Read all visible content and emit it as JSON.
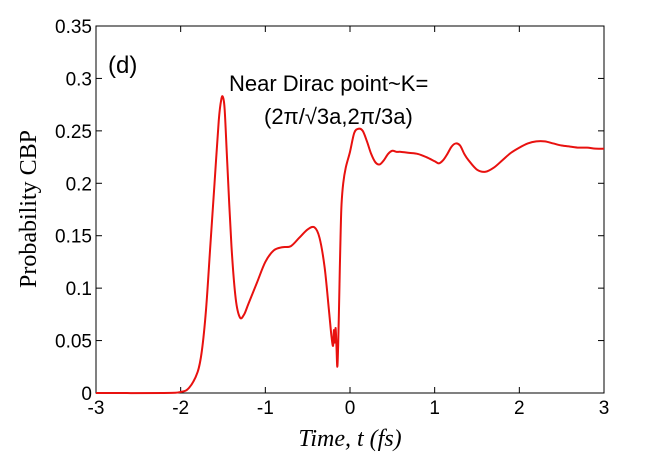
{
  "chart_data": {
    "type": "line",
    "title": "",
    "panel_label": "(d)",
    "annotation_line1": "Near Dirac point~K=",
    "annotation_line2": "(2π/√3a,2π/3a)",
    "xlabel": "Time, t (fs)",
    "ylabel": "Probability CBP",
    "xlim": [
      -3,
      3
    ],
    "ylim": [
      0,
      0.35
    ],
    "xticks": [
      -3,
      -2,
      -1,
      0,
      1,
      2,
      3
    ],
    "xtick_labels": [
      "-3",
      "-2",
      "-1",
      "0",
      "1",
      "2",
      "3"
    ],
    "yticks": [
      0,
      0.05,
      0.1,
      0.15,
      0.2,
      0.25,
      0.3,
      0.35
    ],
    "ytick_labels": [
      "0",
      "0.05",
      "0.1",
      "0.15",
      "0.2",
      "0.25",
      "0.3",
      "0.35"
    ],
    "grid": false,
    "series": [
      {
        "name": "CBP",
        "color": "#e8110f",
        "x": [
          -3.0,
          -2.2,
          -2.0,
          -1.9,
          -1.8,
          -1.75,
          -1.7,
          -1.65,
          -1.6,
          -1.55,
          -1.52,
          -1.5,
          -1.48,
          -1.45,
          -1.4,
          -1.35,
          -1.3,
          -1.25,
          -1.2,
          -1.1,
          -1.0,
          -0.9,
          -0.8,
          -0.7,
          -0.6,
          -0.5,
          -0.42,
          -0.36,
          -0.3,
          -0.25,
          -0.22,
          -0.2,
          -0.19,
          -0.18,
          -0.17,
          -0.16,
          -0.15,
          -0.14,
          -0.13,
          -0.12,
          -0.11,
          -0.1,
          -0.08,
          -0.05,
          0.0,
          0.05,
          0.1,
          0.15,
          0.2,
          0.25,
          0.3,
          0.35,
          0.4,
          0.45,
          0.5,
          0.55,
          0.6,
          0.7,
          0.8,
          0.9,
          1.0,
          1.05,
          1.1,
          1.15,
          1.2,
          1.25,
          1.3,
          1.35,
          1.4,
          1.5,
          1.6,
          1.7,
          1.8,
          1.9,
          2.0,
          2.1,
          2.2,
          2.3,
          2.4,
          2.5,
          2.6,
          2.7,
          2.8,
          2.9,
          3.0
        ],
        "y": [
          0.0,
          0.0,
          0.001,
          0.005,
          0.02,
          0.04,
          0.08,
          0.14,
          0.2,
          0.26,
          0.28,
          0.282,
          0.27,
          0.22,
          0.14,
          0.09,
          0.072,
          0.075,
          0.085,
          0.105,
          0.125,
          0.136,
          0.139,
          0.14,
          0.148,
          0.156,
          0.158,
          0.148,
          0.12,
          0.08,
          0.055,
          0.045,
          0.06,
          0.048,
          0.062,
          0.045,
          0.025,
          0.045,
          0.08,
          0.12,
          0.155,
          0.18,
          0.2,
          0.215,
          0.23,
          0.248,
          0.252,
          0.25,
          0.24,
          0.228,
          0.22,
          0.218,
          0.222,
          0.228,
          0.231,
          0.23,
          0.23,
          0.229,
          0.228,
          0.225,
          0.221,
          0.219,
          0.222,
          0.228,
          0.235,
          0.238,
          0.236,
          0.228,
          0.222,
          0.213,
          0.211,
          0.215,
          0.222,
          0.229,
          0.234,
          0.238,
          0.24,
          0.24,
          0.238,
          0.236,
          0.235,
          0.234,
          0.234,
          0.233,
          0.233
        ]
      }
    ]
  }
}
